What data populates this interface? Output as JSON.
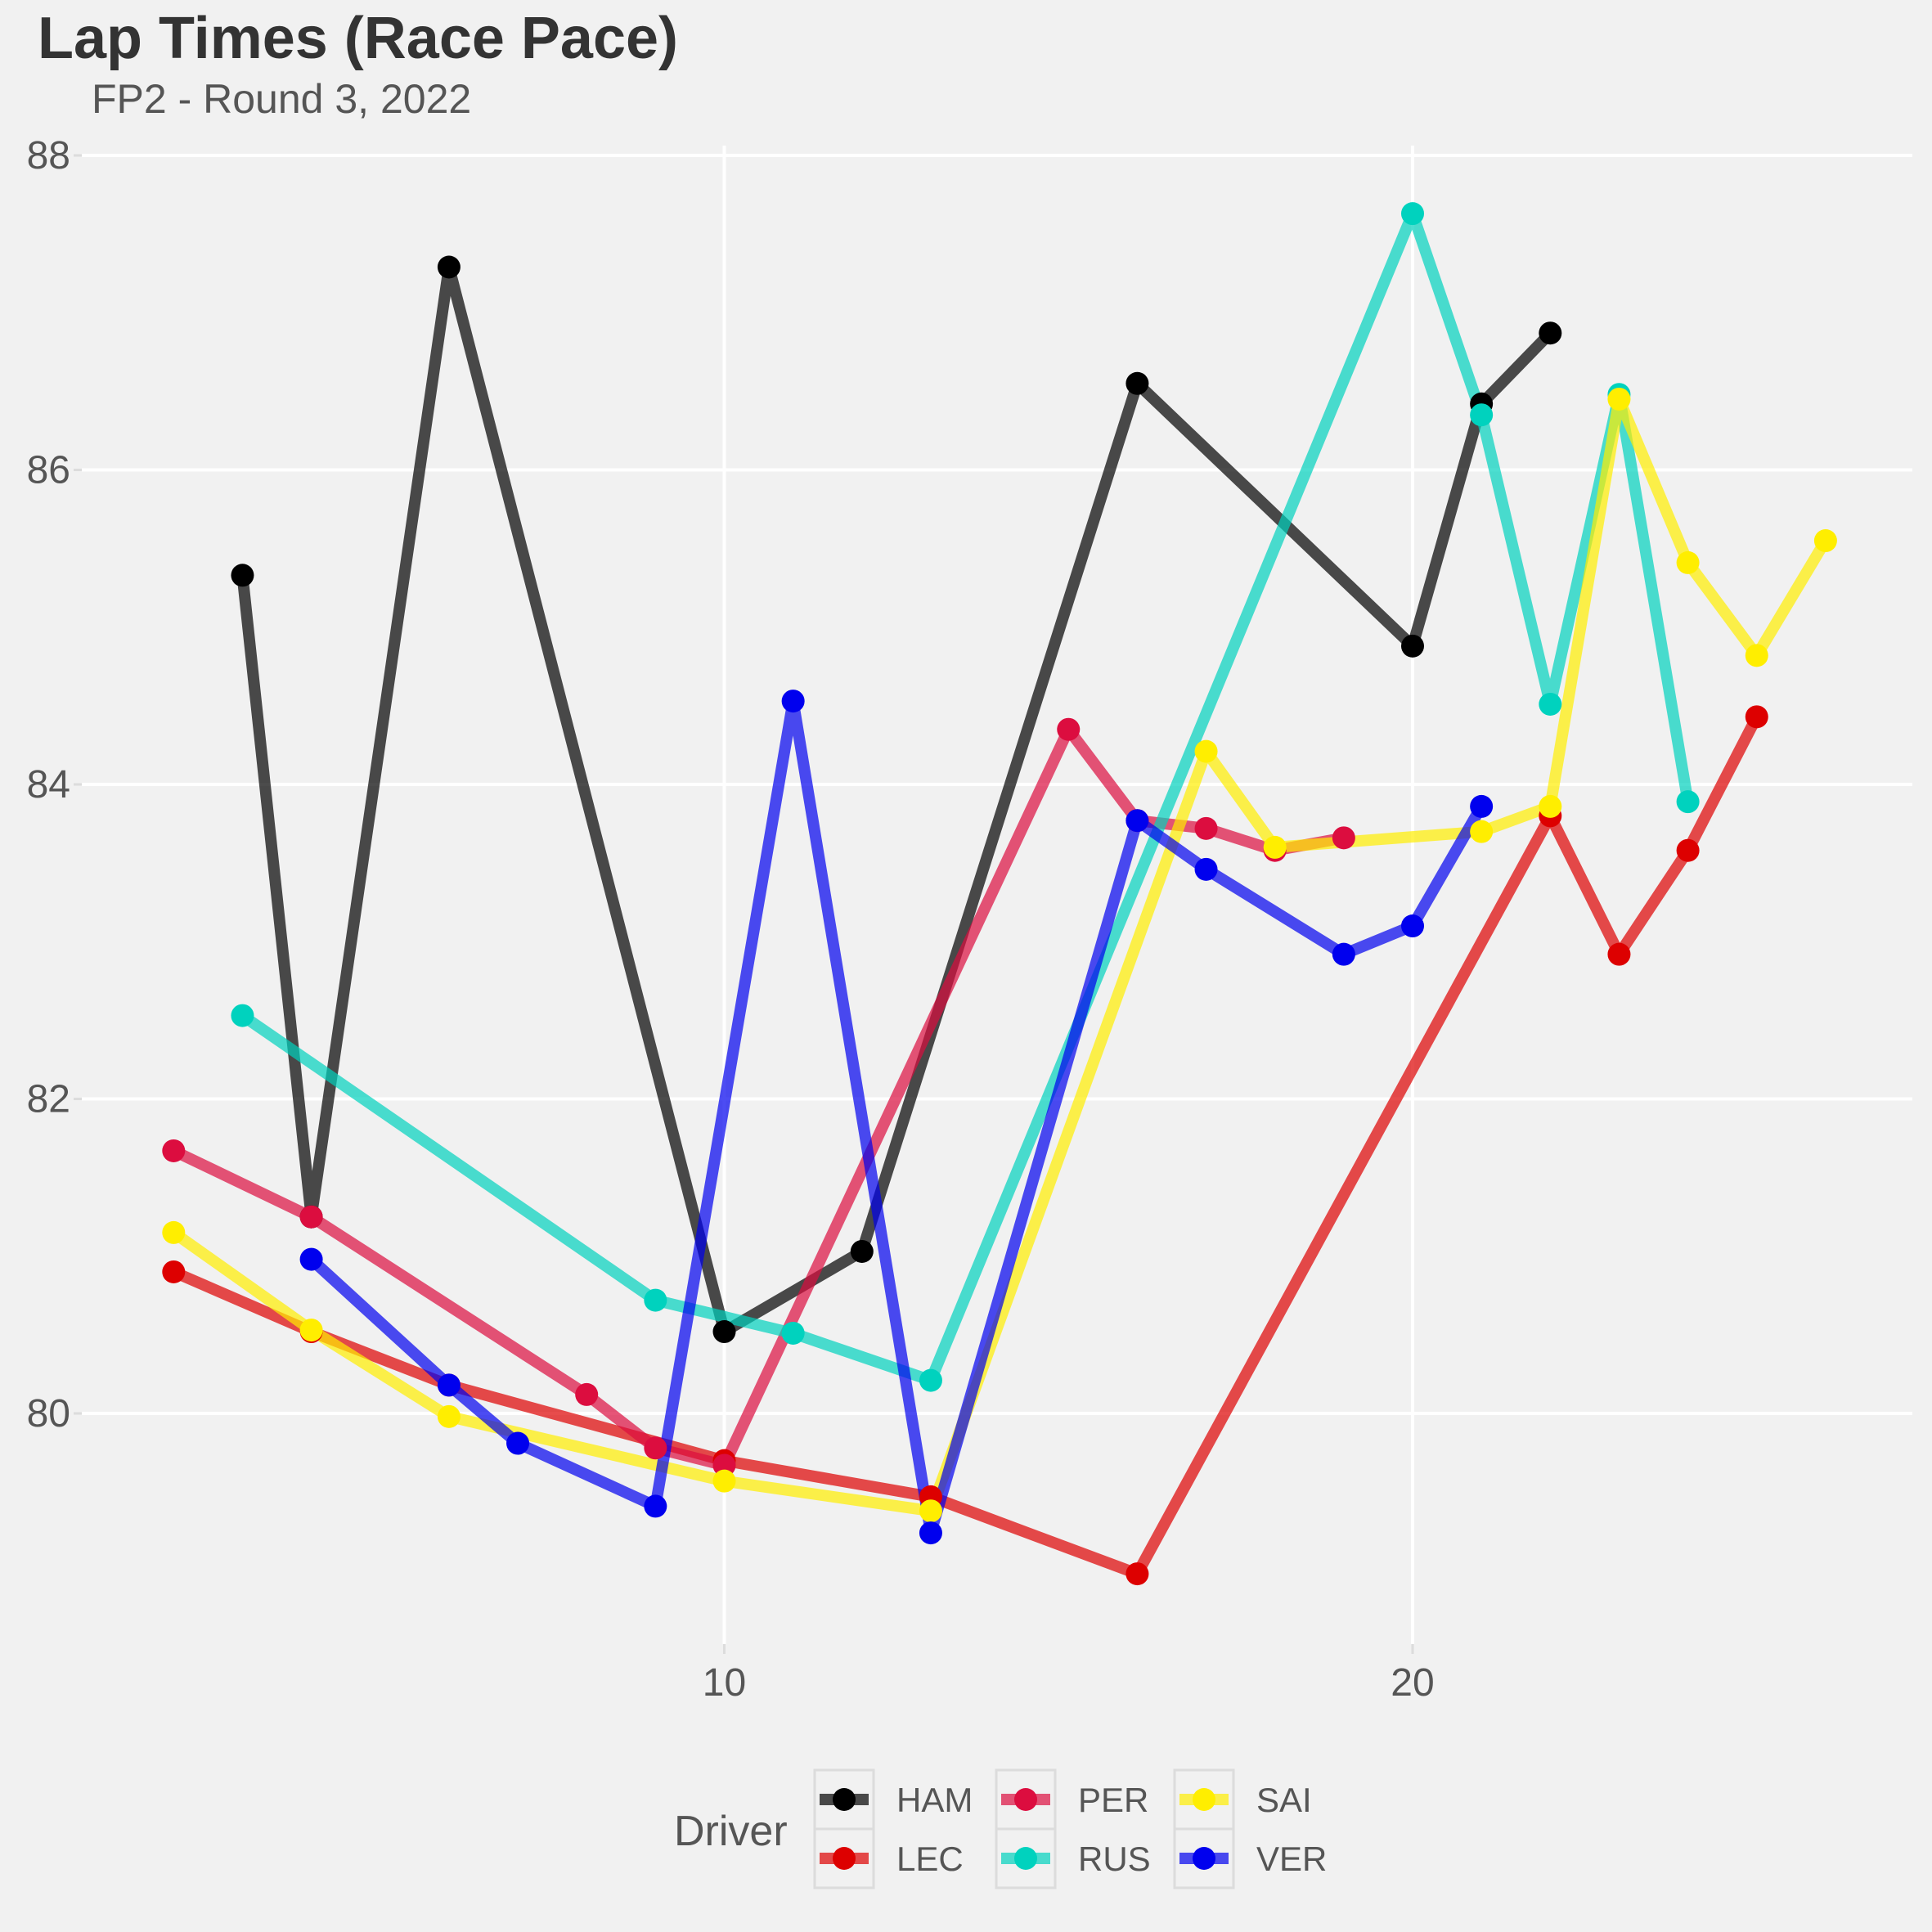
{
  "chart_data": {
    "type": "line",
    "title": "Lap Times (Race Pace)",
    "subtitle": "FP2 - Round 3, 2022",
    "xlabel": "",
    "ylabel": "",
    "xlim": [
      1,
      27
    ],
    "ylim": [
      79,
      88
    ],
    "x_ticks": [
      10,
      20
    ],
    "y_ticks": [
      80,
      82,
      84,
      86,
      88
    ],
    "grid": true,
    "legend": {
      "title": "Driver",
      "position": "bottom"
    },
    "series": [
      {
        "name": "HAM",
        "color": "#000000",
        "points": [
          [
            3,
            85.33
          ],
          [
            4,
            81.25
          ],
          [
            6,
            87.29
          ],
          [
            10,
            80.52
          ],
          [
            12,
            81.03
          ],
          [
            16,
            86.55
          ],
          [
            20,
            84.88
          ],
          [
            21,
            86.42
          ],
          [
            22,
            86.87
          ]
        ]
      },
      {
        "name": "LEC",
        "color": "#dd0000",
        "points": [
          [
            2,
            80.9
          ],
          [
            4,
            80.52
          ],
          [
            6,
            80.18
          ],
          [
            10,
            79.7
          ],
          [
            13,
            79.47
          ],
          [
            16,
            78.98
          ],
          [
            22,
            83.8
          ],
          [
            23,
            82.92
          ],
          [
            24,
            83.58
          ],
          [
            25,
            84.43
          ]
        ]
      },
      {
        "name": "PER",
        "color": "#dc0d3f",
        "points": [
          [
            2,
            81.67
          ],
          [
            4,
            81.25
          ],
          [
            8,
            80.12
          ],
          [
            9,
            79.78
          ],
          [
            10,
            79.67
          ],
          [
            15,
            84.35
          ],
          [
            16,
            83.77
          ],
          [
            17,
            83.72
          ],
          [
            18,
            83.58
          ],
          [
            19,
            83.66
          ]
        ]
      },
      {
        "name": "RUS",
        "color": "#00d2be",
        "points": [
          [
            3,
            82.53
          ],
          [
            9,
            80.72
          ],
          [
            11,
            80.51
          ],
          [
            13,
            80.21
          ],
          [
            20,
            87.63
          ],
          [
            21,
            86.35
          ],
          [
            22,
            84.51
          ],
          [
            23,
            86.48
          ],
          [
            24,
            83.89
          ]
        ]
      },
      {
        "name": "SAI",
        "color": "#ffee00",
        "points": [
          [
            2,
            81.15
          ],
          [
            4,
            80.53
          ],
          [
            6,
            79.98
          ],
          [
            10,
            79.57
          ],
          [
            13,
            79.38
          ],
          [
            17,
            84.21
          ],
          [
            18,
            83.6
          ],
          [
            21,
            83.7
          ],
          [
            22,
            83.86
          ],
          [
            23,
            86.45
          ],
          [
            24,
            85.41
          ],
          [
            25,
            84.82
          ],
          [
            26,
            85.55
          ]
        ]
      },
      {
        "name": "VER",
        "color": "#0000ee",
        "points": [
          [
            4,
            80.98
          ],
          [
            6,
            80.18
          ],
          [
            7,
            79.81
          ],
          [
            9,
            79.41
          ],
          [
            11,
            84.53
          ],
          [
            13,
            79.24
          ],
          [
            16,
            83.77
          ],
          [
            17,
            83.46
          ],
          [
            19,
            82.92
          ],
          [
            20,
            83.1
          ],
          [
            21,
            83.86
          ]
        ]
      }
    ]
  }
}
